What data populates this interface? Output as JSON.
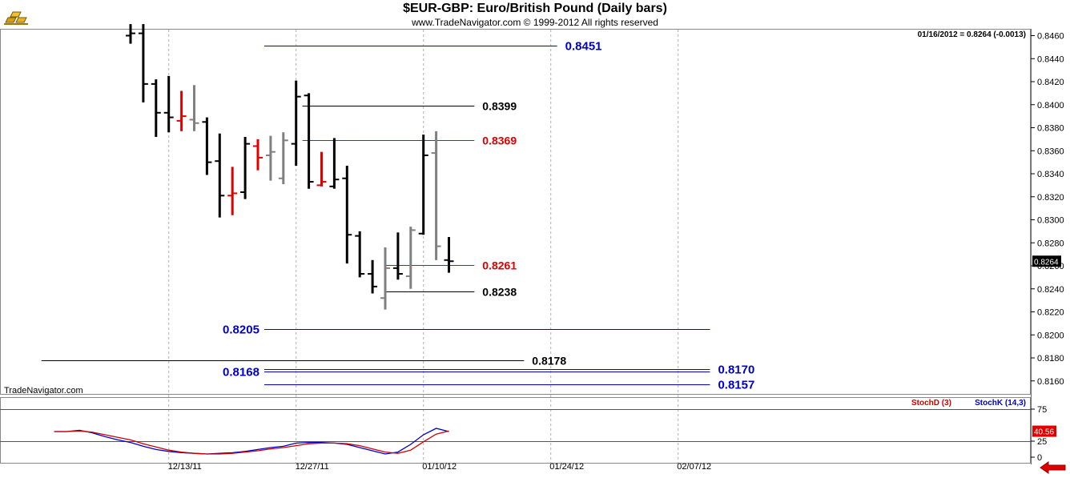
{
  "window": {
    "title": "$EUR-GBP:  Euro/British Pound  (Daily bars)",
    "copyright": "www.TradeNavigator.com © 1999-2012 All rights reserved",
    "watermark": "TradeNavigator.com",
    "logo_icon": "gold-bars-icon",
    "nav_icon": "red-left-arrow-icon"
  },
  "chart_data": [
    {
      "type": "ohlc",
      "status": "01/16/2012 = 0.8264 (-0.0013)",
      "last_price": "0.8264",
      "ylim": [
        0.814,
        0.847
      ],
      "y_ticks": [
        "0.8160",
        "0.8180",
        "0.8200",
        "0.8220",
        "0.8240",
        "0.8260",
        "0.8280",
        "0.8300",
        "0.8320",
        "0.8340",
        "0.8360",
        "0.8380",
        "0.8400",
        "0.8420",
        "0.8440",
        "0.8460"
      ],
      "x_ticks": [
        {
          "label": "12/13/11",
          "i": 3
        },
        {
          "label": "12/27/11",
          "i": 13
        },
        {
          "label": "01/10/12",
          "i": 23
        },
        {
          "label": "01/24/12",
          "i": 33
        },
        {
          "label": "02/07/12",
          "i": 43
        }
      ],
      "colors": {
        "up": "#000000",
        "down": "#808080",
        "red": "#e00000",
        "blue": "#0000cc",
        "stoch_d": "#cc0000",
        "stoch_k": "#0000cc"
      },
      "bars": [
        {
          "i": 0,
          "o": 0.846,
          "h": 0.847,
          "l": 0.8453,
          "c": 0.8462,
          "color": "up"
        },
        {
          "i": 1,
          "o": 0.8462,
          "h": 0.847,
          "l": 0.8402,
          "c": 0.8418,
          "color": "up"
        },
        {
          "i": 2,
          "o": 0.8418,
          "h": 0.8422,
          "l": 0.8372,
          "c": 0.8393,
          "color": "up"
        },
        {
          "i": 3,
          "o": 0.8393,
          "h": 0.8425,
          "l": 0.8376,
          "c": 0.8389,
          "color": "up"
        },
        {
          "i": 4,
          "o": 0.8386,
          "h": 0.8412,
          "l": 0.8377,
          "c": 0.839,
          "color": "red"
        },
        {
          "i": 5,
          "o": 0.8387,
          "h": 0.8417,
          "l": 0.8377,
          "c": 0.8384,
          "color": "down"
        },
        {
          "i": 6,
          "o": 0.8385,
          "h": 0.8389,
          "l": 0.8339,
          "c": 0.835,
          "color": "up"
        },
        {
          "i": 7,
          "o": 0.8351,
          "h": 0.8375,
          "l": 0.8302,
          "c": 0.8321,
          "color": "up"
        },
        {
          "i": 8,
          "o": 0.8321,
          "h": 0.8346,
          "l": 0.8304,
          "c": 0.8323,
          "color": "red"
        },
        {
          "i": 9,
          "o": 0.8324,
          "h": 0.8372,
          "l": 0.8318,
          "c": 0.8366,
          "color": "up"
        },
        {
          "i": 10,
          "o": 0.8364,
          "h": 0.837,
          "l": 0.8343,
          "c": 0.8354,
          "color": "red"
        },
        {
          "i": 11,
          "o": 0.8356,
          "h": 0.8373,
          "l": 0.8334,
          "c": 0.8359,
          "color": "down"
        },
        {
          "i": 12,
          "o": 0.8336,
          "h": 0.8376,
          "l": 0.8331,
          "c": 0.8369,
          "color": "down"
        },
        {
          "i": 13,
          "o": 0.8366,
          "h": 0.8421,
          "l": 0.8347,
          "c": 0.8407,
          "color": "up"
        },
        {
          "i": 14,
          "o": 0.8408,
          "h": 0.841,
          "l": 0.8327,
          "c": 0.8333,
          "color": "up"
        },
        {
          "i": 15,
          "o": 0.833,
          "h": 0.8359,
          "l": 0.8329,
          "c": 0.8333,
          "color": "red"
        },
        {
          "i": 16,
          "o": 0.8329,
          "h": 0.8371,
          "l": 0.8327,
          "c": 0.8335,
          "color": "up"
        },
        {
          "i": 17,
          "o": 0.8336,
          "h": 0.8347,
          "l": 0.8262,
          "c": 0.8287,
          "color": "up"
        },
        {
          "i": 18,
          "o": 0.8286,
          "h": 0.829,
          "l": 0.825,
          "c": 0.8253,
          "color": "up"
        },
        {
          "i": 19,
          "o": 0.8253,
          "h": 0.8265,
          "l": 0.8236,
          "c": 0.8242,
          "color": "up"
        },
        {
          "i": 20,
          "o": 0.8232,
          "h": 0.8276,
          "l": 0.8222,
          "c": 0.8258,
          "color": "down"
        },
        {
          "i": 21,
          "o": 0.8258,
          "h": 0.8289,
          "l": 0.8248,
          "c": 0.8253,
          "color": "up"
        },
        {
          "i": 22,
          "o": 0.8251,
          "h": 0.8294,
          "l": 0.824,
          "c": 0.8291,
          "color": "down"
        },
        {
          "i": 23,
          "o": 0.8288,
          "h": 0.8374,
          "l": 0.8287,
          "c": 0.8356,
          "color": "up"
        },
        {
          "i": 24,
          "o": 0.8358,
          "h": 0.8377,
          "l": 0.8265,
          "c": 0.8277,
          "color": "down"
        },
        {
          "i": 25,
          "o": 0.8265,
          "h": 0.8285,
          "l": 0.8254,
          "c": 0.8264,
          "color": "up"
        }
      ],
      "levels": [
        {
          "name": "level-8451",
          "value": 0.8451,
          "label": "0.8451",
          "color": "blue",
          "from": 10.5,
          "to": 33.5,
          "label_at": "right"
        },
        {
          "name": "level-8399",
          "value": 0.8399,
          "label": "0.8399",
          "color": "black",
          "from": 13.5,
          "to": 27.0,
          "label_at": "right"
        },
        {
          "name": "level-8369",
          "value": 0.8369,
          "label": "0.8369",
          "color": "red",
          "from": 13.5,
          "to": 27.0,
          "label_at": "right"
        },
        {
          "name": "level-8261",
          "value": 0.8261,
          "label": "0.8261",
          "color": "red",
          "from": 20.0,
          "to": 27.0,
          "label_at": "right"
        },
        {
          "name": "level-8238",
          "value": 0.8238,
          "label": "0.8238",
          "color": "black",
          "from": 20.0,
          "to": 27.0,
          "label_at": "right"
        },
        {
          "name": "level-8205",
          "value": 0.8205,
          "label": "0.8205",
          "color": "blue",
          "from": 10.5,
          "to": 45.5,
          "label_at": "left"
        },
        {
          "name": "level-8178",
          "value": 0.8178,
          "label": "0.8178",
          "color": "black",
          "from": -7.0,
          "to": 30.9,
          "label_at": "right"
        },
        {
          "name": "level-8170",
          "value": 0.817,
          "label": "0.8170",
          "color": "blue",
          "from": 10.5,
          "to": 45.5,
          "label_at": "right"
        },
        {
          "name": "level-8168",
          "value": 0.8168,
          "label": "0.8168",
          "color": "blue",
          "from": 10.5,
          "to": 45.5,
          "label_at": "left"
        },
        {
          "name": "level-8157",
          "value": 0.8157,
          "label": "0.8157",
          "color": "blue",
          "from": 10.5,
          "to": 45.5,
          "label_at": "right"
        }
      ]
    },
    {
      "type": "line",
      "stochd_label": "StochD (3)",
      "stochk_label": "StochK (14,3)",
      "last_value": "40.56",
      "ylim": [
        0,
        100
      ],
      "y_ticks": [
        {
          "v": 0,
          "label": "0"
        },
        {
          "v": 25,
          "label": "25"
        },
        {
          "v": 75,
          "label": "75"
        }
      ],
      "x": [
        -6,
        -5,
        -4,
        -3,
        -2,
        -1,
        0,
        1,
        2,
        3,
        4,
        5,
        6,
        7,
        8,
        9,
        10,
        11,
        12,
        13,
        14,
        15,
        16,
        17,
        18,
        19,
        20,
        21,
        22,
        23,
        24,
        25
      ],
      "stochd": [
        40,
        40,
        41,
        39,
        35,
        31,
        27,
        21,
        16,
        11,
        8,
        6,
        5,
        5,
        6,
        8,
        10,
        13,
        15,
        18,
        21,
        22,
        22,
        21,
        18,
        13,
        8,
        6,
        11,
        24,
        36,
        41
      ],
      "stochk": [
        40,
        40,
        42,
        38,
        32,
        27,
        23,
        17,
        12,
        9,
        7,
        6,
        5,
        6,
        7,
        9,
        12,
        15,
        17,
        22,
        23,
        23,
        22,
        20,
        15,
        10,
        5,
        8,
        20,
        35,
        45,
        40
      ]
    }
  ]
}
